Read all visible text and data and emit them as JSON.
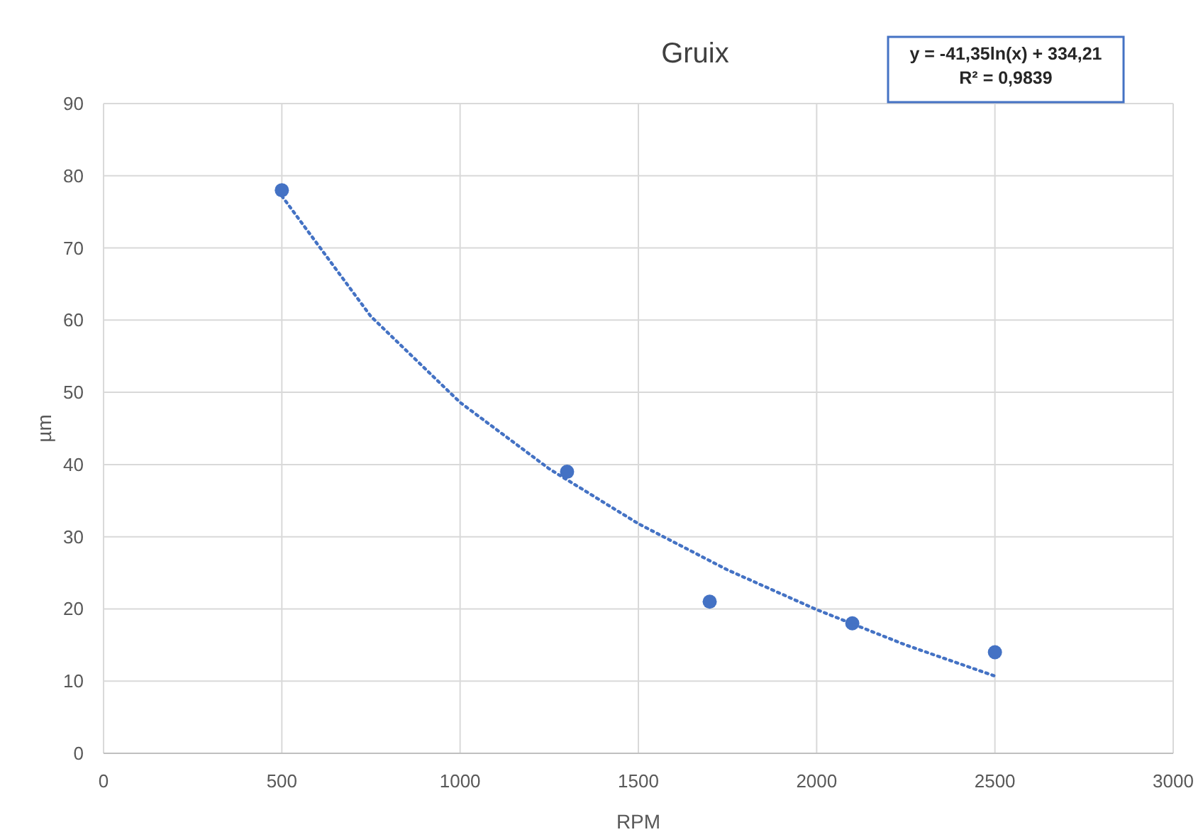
{
  "chart_data": {
    "type": "scatter",
    "title": "Gruix",
    "xlabel": "RPM",
    "ylabel": "µm",
    "xlim": [
      0,
      3000
    ],
    "xticks": [
      0,
      500,
      1000,
      1500,
      2000,
      2500,
      3000
    ],
    "ylim": [
      0,
      90
    ],
    "yticks": [
      0,
      10,
      20,
      30,
      40,
      50,
      60,
      70,
      80,
      90
    ],
    "grid": true,
    "series": [
      {
        "color": "#4472c4",
        "marker": "circle",
        "x": [
          500,
          1300,
          1700,
          2100,
          2500
        ],
        "values": [
          78,
          39,
          21,
          18,
          14
        ]
      },
      {
        "type": "line",
        "color": "#4472c4",
        "line_style": "dotted",
        "marker": "none",
        "x": [
          500,
          750,
          1000,
          1250,
          1500,
          1750,
          2000,
          2250,
          2500
        ],
        "values": [
          77.2,
          60.5,
          48.6,
          39.4,
          31.8,
          25.4,
          19.9,
          15.0,
          10.7
        ]
      }
    ],
    "annotations": [
      "y = -41,35ln(x) + 334,21",
      "R² = 0,9839"
    ]
  }
}
